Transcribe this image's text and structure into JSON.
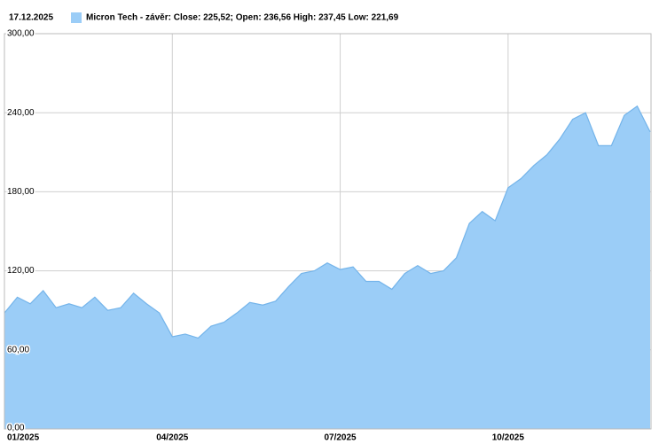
{
  "chart_data": {
    "type": "area",
    "title": "17.12.2025",
    "categories": [
      "01/2025",
      null,
      null,
      null,
      null,
      null,
      null,
      null,
      null,
      null,
      null,
      null,
      null,
      "04/2025",
      null,
      null,
      null,
      null,
      null,
      null,
      null,
      null,
      null,
      null,
      null,
      null,
      "07/2025",
      null,
      null,
      null,
      null,
      null,
      null,
      null,
      null,
      null,
      null,
      null,
      null,
      "10/2025",
      null,
      null,
      null,
      null,
      null,
      null,
      null,
      null,
      null,
      null,
      null
    ],
    "series": [
      {
        "name": "Micron Tech - závěr: Close: 225,52; Open: 236,56 High: 237,45 Low: 221,69",
        "color": "#9bcdf7",
        "line_color": "#74b4ea",
        "values": [
          88,
          100,
          95,
          105,
          92,
          95,
          92,
          100,
          90,
          92,
          103,
          95,
          88,
          70,
          72,
          69,
          78,
          81,
          88,
          96,
          94,
          97,
          108,
          118,
          120,
          126,
          121,
          123,
          112,
          112,
          106,
          118,
          124,
          118,
          120,
          130,
          156,
          165,
          158,
          183,
          190,
          200,
          208,
          220,
          235,
          240,
          215,
          215,
          238,
          245,
          225.52
        ]
      }
    ],
    "ylim": [
      0,
      300
    ],
    "yticks": [
      {
        "value": 0,
        "label": "0,00"
      },
      {
        "value": 60,
        "label": "60,00"
      },
      {
        "value": 120,
        "label": "120,00"
      },
      {
        "value": 180,
        "label": "180,00"
      },
      {
        "value": 240,
        "label": "240,00"
      },
      {
        "value": 300,
        "label": "300,00"
      }
    ],
    "grid": true
  }
}
